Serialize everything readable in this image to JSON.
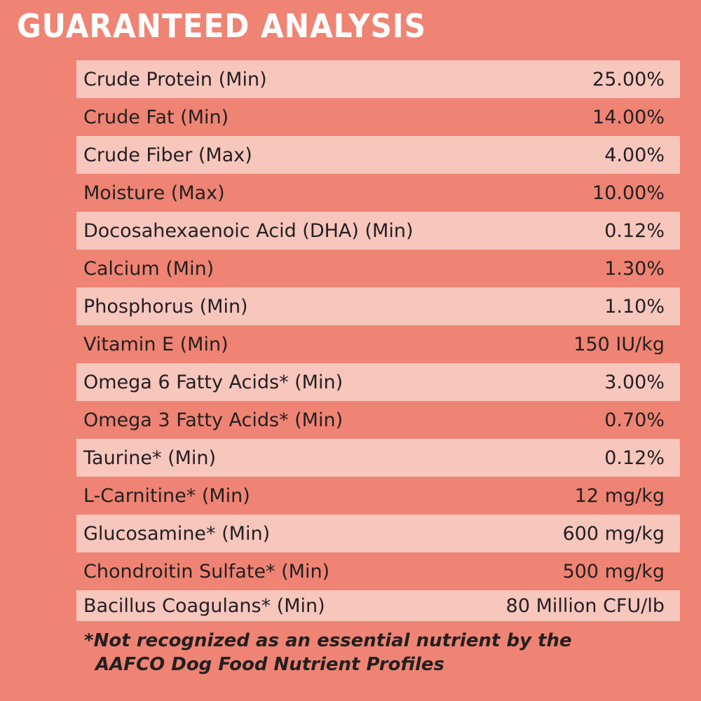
{
  "title": "GUARANTEED ANALYSIS",
  "rows": [
    {
      "label": "Crude Protein (Min)",
      "value": "25.00%"
    },
    {
      "label": "Crude Fat (Min)",
      "value": "14.00%"
    },
    {
      "label": "Crude Fiber (Max)",
      "value": "4.00%"
    },
    {
      "label": "Moisture (Max)",
      "value": "10.00%"
    },
    {
      "label": "Docosahexaenoic Acid (DHA) (Min)",
      "value": "0.12%"
    },
    {
      "label": "Calcium (Min)",
      "value": "1.30%"
    },
    {
      "label": "Phosphorus (Min)",
      "value": "1.10%"
    },
    {
      "label": "Vitamin E (Min)",
      "value": "150 IU/kg"
    },
    {
      "label": "Omega 6 Fatty Acids* (Min)",
      "value": "3.00%"
    },
    {
      "label": "Omega 3 Fatty Acids* (Min)",
      "value": "0.70%"
    },
    {
      "label": "Taurine* (Min)",
      "value": "0.12%"
    },
    {
      "label": "L-Carnitine* (Min)",
      "value": "12 mg/kg"
    },
    {
      "label": "Glucosamine* (Min)",
      "value": "600 mg/kg"
    },
    {
      "label": "Chondroitin Sulfate* (Min)",
      "value": "500 mg/kg"
    },
    {
      "label": "Bacillus Coagulans* (Min)",
      "value": "80 Million CFU/lb"
    }
  ],
  "footnote": {
    "line1": "*Not recognized as an essential nutrient by the",
    "line2": "AAFCO Dog Food Nutrient Profiles"
  },
  "colors": {
    "background": "#ef8474",
    "row_light": "#f7c6bd",
    "title": "#ffffff",
    "text": "#231f20"
  }
}
